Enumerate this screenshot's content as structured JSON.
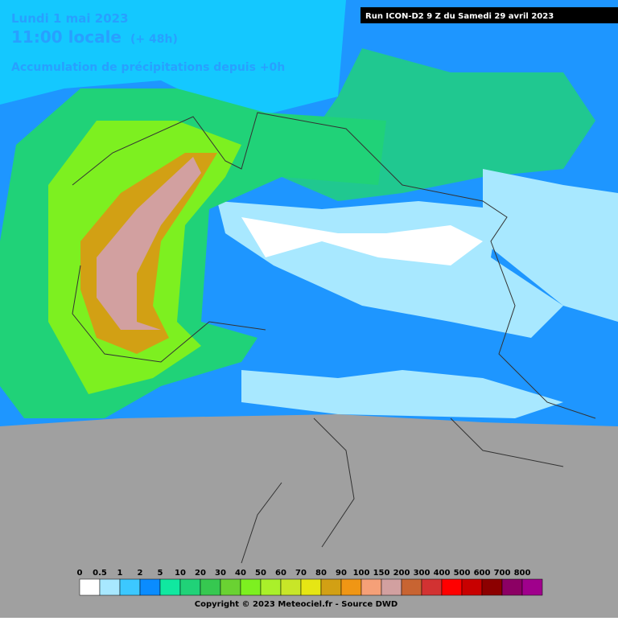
{
  "header": {
    "date": "Lundi 1 mai 2023",
    "time": "11:00 locale",
    "offset": "(+ 48h)",
    "subtitle": "Accumulation de précipitations depuis +0h"
  },
  "run_label": "Run ICON-D2 9 Z du Samedi 29 avril 2023",
  "legend": {
    "items": [
      {
        "label": "0",
        "color": "#ffffff"
      },
      {
        "label": "0.5",
        "color": "#a8e8ff"
      },
      {
        "label": "1",
        "color": "#3cc8ff"
      },
      {
        "label": "2",
        "color": "#0a8cff"
      },
      {
        "label": "5",
        "color": "#10e8a0"
      },
      {
        "label": "10",
        "color": "#20d278"
      },
      {
        "label": "20",
        "color": "#36c850"
      },
      {
        "label": "30",
        "color": "#6ad232"
      },
      {
        "label": "40",
        "color": "#7df020"
      },
      {
        "label": "50",
        "color": "#aaf02a"
      },
      {
        "label": "60",
        "color": "#c8e628"
      },
      {
        "label": "70",
        "color": "#e6e614"
      },
      {
        "label": "80",
        "color": "#d2a014"
      },
      {
        "label": "90",
        "color": "#f09614"
      },
      {
        "label": "100",
        "color": "#f5a078"
      },
      {
        "label": "150",
        "color": "#d2a0a0"
      },
      {
        "label": "200",
        "color": "#c86432"
      },
      {
        "label": "300",
        "color": "#d23232"
      },
      {
        "label": "400",
        "color": "#ff0000"
      },
      {
        "label": "500",
        "color": "#c80000"
      },
      {
        "label": "600",
        "color": "#8c0000"
      },
      {
        "label": "700",
        "color": "#8c0064"
      },
      {
        "label": "800",
        "color": "#a0008c"
      }
    ]
  },
  "copyright": "Copyright © 2023 Meteociel.fr - Source DWD"
}
